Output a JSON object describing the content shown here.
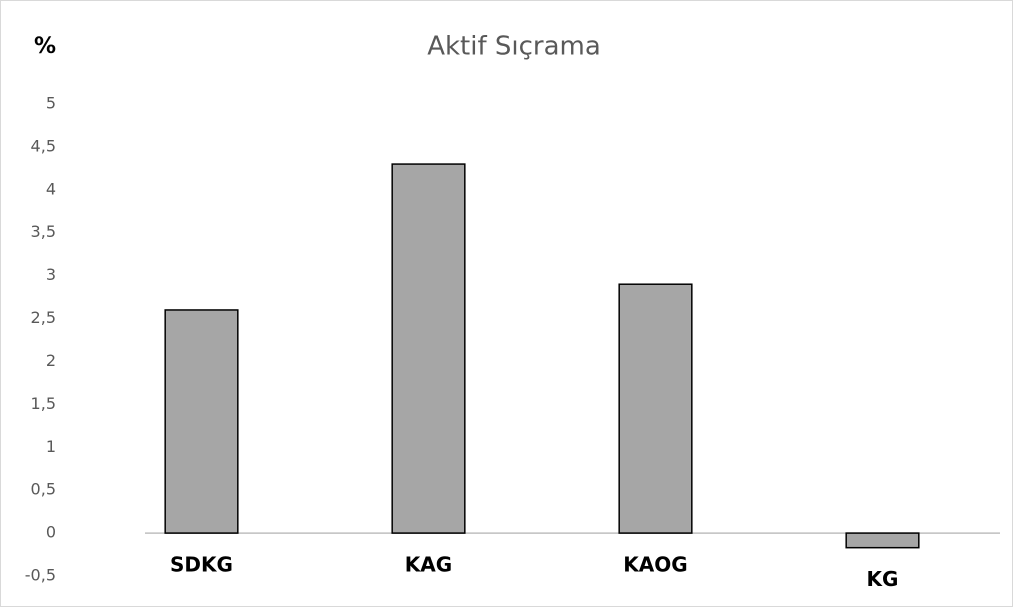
{
  "chart_data": {
    "type": "bar",
    "title": "Aktif Sıçrama",
    "y_label": "%",
    "categories": [
      "SDKG",
      "KAG",
      "KAOG",
      "KG"
    ],
    "values": [
      2.6,
      4.3,
      2.9,
      -0.17
    ],
    "color": "#a6a6a6",
    "edge_color": "#000000",
    "ylim": [
      -0.5,
      5
    ],
    "yticks": [
      {
        "value": -0.5,
        "label": "-0,5"
      },
      0,
      {
        "value": 0.5,
        "label": "0,5"
      },
      1,
      {
        "value": 1.5,
        "label": "1,5"
      },
      2,
      {
        "value": 2.5,
        "label": "2,5"
      },
      3,
      {
        "value": 3.5,
        "label": "3,5"
      },
      4,
      {
        "value": 4.5,
        "label": "4,5"
      },
      5
    ],
    "grid": false
  }
}
